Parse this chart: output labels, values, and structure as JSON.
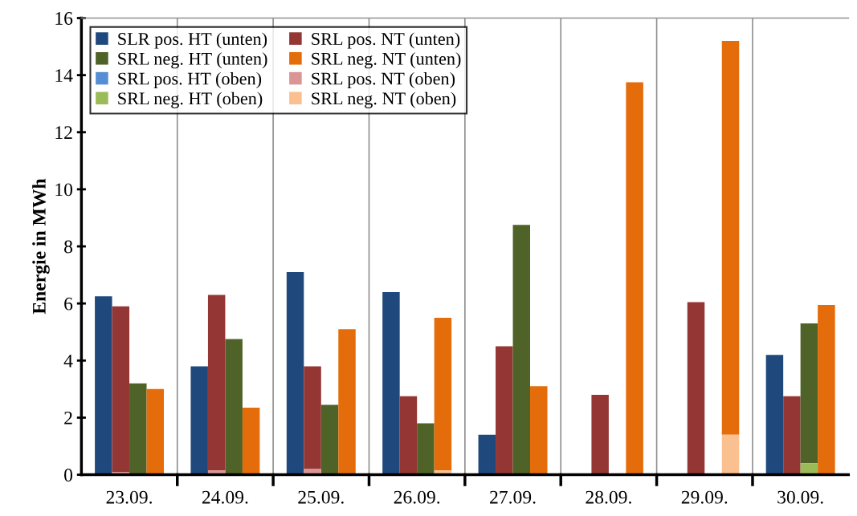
{
  "chart_data": {
    "type": "bar",
    "ylabel": "Energie in MWh",
    "categories": [
      "23.09.",
      "24.09.",
      "25.09.",
      "26.09.",
      "27.09.",
      "28.09.",
      "29.09.",
      "30.09."
    ],
    "ylim": [
      0,
      16
    ],
    "yticks": [
      0,
      2,
      4,
      6,
      8,
      10,
      12,
      14,
      16
    ],
    "grid": "x",
    "legend": "top left",
    "series": [
      {
        "name": "SLR pos. HT (unten)",
        "color": "#1f497d",
        "values": [
          6.25,
          3.8,
          7.1,
          6.4,
          1.4,
          0,
          0,
          4.2
        ]
      },
      {
        "name": "SRL pos. NT (unten)",
        "color": "#943634",
        "values": [
          5.8,
          6.15,
          3.6,
          2.75,
          4.5,
          2.8,
          6.05,
          2.75
        ],
        "base": [
          0.1,
          0.15,
          0.2,
          0,
          0,
          0,
          0,
          0
        ]
      },
      {
        "name": "SRL neg. HT (unten)",
        "color": "#4f6228",
        "values": [
          3.2,
          4.75,
          2.45,
          1.8,
          8.75,
          0,
          0,
          4.9
        ],
        "base": [
          0,
          0,
          0,
          0,
          0,
          null,
          null,
          0.4
        ]
      },
      {
        "name": "SRL neg. NT (unten)",
        "color": "#e46c0a",
        "values": [
          3.0,
          2.35,
          5.1,
          5.35,
          3.1,
          13.75,
          13.8,
          5.95
        ],
        "base": [
          0,
          0,
          0,
          0.15,
          0,
          0,
          1.4,
          0
        ]
      },
      {
        "name": "SRL pos. HT (oben)",
        "color": "#558ed5",
        "values": [
          0,
          0,
          0,
          0,
          0,
          0,
          0,
          0
        ]
      },
      {
        "name": "SRL pos. NT (oben)",
        "color": "#d99694",
        "values": [
          0.1,
          0.15,
          0.2,
          0,
          0,
          0,
          0,
          0
        ]
      },
      {
        "name": "SRL neg. HT (oben)",
        "color": "#9bbb59",
        "values": [
          0,
          0,
          0,
          0,
          0,
          0,
          0,
          0.4
        ]
      },
      {
        "name": "SRL neg. NT (oben)",
        "color": "#fac090",
        "values": [
          0,
          0,
          0,
          0.15,
          0,
          0,
          1.4,
          0
        ]
      }
    ]
  }
}
